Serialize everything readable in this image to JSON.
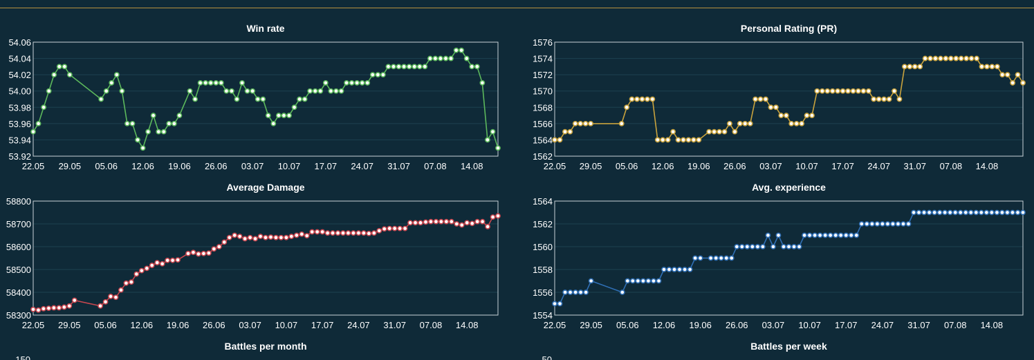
{
  "chart_data": [
    {
      "type": "line",
      "title": "Win rate",
      "color": "#5cb85c",
      "ylim": [
        53.92,
        54.06
      ],
      "yticks": [
        "53.92",
        "53.94",
        "53.96",
        "53.98",
        "54.00",
        "54.02",
        "54.04",
        "54.06"
      ],
      "xticks": [
        "22.05",
        "29.05",
        "05.06",
        "12.06",
        "19.06",
        "26.06",
        "03.07",
        "10.07",
        "17.07",
        "24.07",
        "31.07",
        "07.08",
        "14.08"
      ],
      "grid": true,
      "series": [
        {
          "values": [
            53.95,
            53.96,
            53.98,
            54.0,
            54.02,
            54.03,
            54.03,
            54.02,
            null,
            null,
            null,
            null,
            null,
            53.99,
            54.0,
            54.01,
            54.02,
            54.0,
            53.96,
            53.96,
            53.94,
            53.93,
            53.95,
            53.97,
            53.95,
            53.95,
            53.96,
            53.96,
            53.97,
            null,
            54.0,
            53.99,
            54.01,
            54.01,
            54.01,
            54.01,
            54.01,
            54.0,
            54.0,
            53.99,
            54.01,
            54.0,
            54.0,
            53.99,
            53.99,
            53.97,
            53.96,
            53.97,
            53.97,
            53.97,
            53.98,
            53.99,
            53.99,
            54.0,
            54.0,
            54.0,
            54.01,
            54.0,
            54.0,
            54.0,
            54.01,
            54.01,
            54.01,
            54.01,
            54.01,
            54.02,
            54.02,
            54.02,
            54.03,
            54.03,
            54.03,
            54.03,
            54.03,
            54.03,
            54.03,
            54.03,
            54.04,
            54.04,
            54.04,
            54.04,
            54.04,
            54.05,
            54.05,
            54.04,
            54.03,
            54.03,
            54.01,
            53.94,
            53.95,
            53.93
          ]
        }
      ]
    },
    {
      "type": "line",
      "title": "Personal Rating (PR)",
      "color": "#c9a33d",
      "ylim": [
        1562,
        1576
      ],
      "yticks": [
        "1562",
        "1564",
        "1566",
        "1568",
        "1570",
        "1572",
        "1574",
        "1576"
      ],
      "xticks": [
        "22.05",
        "29.05",
        "05.06",
        "12.06",
        "19.06",
        "26.06",
        "03.07",
        "10.07",
        "17.07",
        "24.07",
        "31.07",
        "07.08",
        "14.08"
      ],
      "grid": true,
      "series": [
        {
          "values": [
            1564,
            1564,
            1565,
            1565,
            1566,
            1566,
            1566,
            1566,
            null,
            null,
            null,
            null,
            null,
            1566,
            1568,
            1569,
            1569,
            1569,
            1569,
            1569,
            1564,
            1564,
            1564,
            1565,
            1564,
            1564,
            1564,
            1564,
            1564,
            null,
            1565,
            1565,
            1565,
            1565,
            1566,
            1565,
            1566,
            1566,
            1566,
            1569,
            1569,
            1569,
            1568,
            1568,
            1567,
            1567,
            1566,
            1566,
            1566,
            1567,
            1567,
            1570,
            1570,
            1570,
            1570,
            1570,
            1570,
            1570,
            1570,
            1570,
            1570,
            1570,
            1569,
            1569,
            1569,
            1569,
            1570,
            1569,
            1573,
            1573,
            1573,
            1573,
            1574,
            1574,
            1574,
            1574,
            1574,
            1574,
            1574,
            1574,
            1574,
            1574,
            1574,
            1573,
            1573,
            1573,
            1573,
            1572,
            1572,
            1571,
            1572,
            1571
          ]
        }
      ]
    },
    {
      "type": "line",
      "title": "Average Damage",
      "color": "#c8474f",
      "ylim": [
        58300,
        58800
      ],
      "yticks": [
        "58300",
        "58400",
        "58500",
        "58600",
        "58700",
        "58800"
      ],
      "xticks": [
        "22.05",
        "29.05",
        "05.06",
        "12.06",
        "19.06",
        "26.06",
        "03.07",
        "10.07",
        "17.07",
        "24.07",
        "31.07",
        "07.08",
        "14.08"
      ],
      "grid": true,
      "series": [
        {
          "values": [
            58325,
            58322,
            58328,
            58330,
            58332,
            58332,
            58335,
            58340,
            58365,
            null,
            null,
            null,
            null,
            58340,
            58358,
            58382,
            58378,
            58410,
            58440,
            58445,
            58480,
            58495,
            58505,
            58518,
            58530,
            58525,
            58540,
            58540,
            58542,
            null,
            58570,
            58575,
            58568,
            58570,
            58572,
            58590,
            58600,
            58620,
            58640,
            58650,
            58645,
            58635,
            58640,
            58635,
            58645,
            58640,
            58642,
            58640,
            58640,
            58640,
            58645,
            58650,
            58655,
            58648,
            58665,
            58665,
            58665,
            58660,
            58660,
            58660,
            58660,
            58660,
            58660,
            58660,
            58660,
            58658,
            58660,
            58670,
            58678,
            58680,
            58680,
            58680,
            58680,
            58705,
            58705,
            58705,
            58708,
            58710,
            58710,
            58710,
            58710,
            58710,
            58700,
            58695,
            58705,
            58702,
            58710,
            58710,
            58688,
            58730,
            58735
          ]
        }
      ]
    },
    {
      "type": "line",
      "title": "Avg. experience",
      "color": "#2f6fb5",
      "ylim": [
        1554,
        1564
      ],
      "yticks": [
        "1554",
        "1556",
        "1558",
        "1560",
        "1562",
        "1564"
      ],
      "xticks": [
        "22.05",
        "29.05",
        "05.06",
        "12.06",
        "19.06",
        "26.06",
        "03.07",
        "10.07",
        "17.07",
        "24.07",
        "31.07",
        "07.08",
        "14.08"
      ],
      "grid": true,
      "series": [
        {
          "values": [
            1555,
            1555,
            1556,
            1556,
            1556,
            1556,
            1556,
            1557,
            null,
            null,
            null,
            null,
            null,
            1556,
            1557,
            1557,
            1557,
            1557,
            1557,
            1557,
            1557,
            1558,
            1558,
            1558,
            1558,
            1558,
            1558,
            1559,
            1559,
            null,
            1559,
            1559,
            1559,
            1559,
            1559,
            1560,
            1560,
            1560,
            1560,
            1560,
            1560,
            1561,
            1560,
            1561,
            1560,
            1560,
            1560,
            1560,
            1561,
            1561,
            1561,
            1561,
            1561,
            1561,
            1561,
            1561,
            1561,
            1561,
            1561,
            1562,
            1562,
            1562,
            1562,
            1562,
            1562,
            1562,
            1562,
            1562,
            1562,
            1563,
            1563,
            1563,
            1563,
            1563,
            1563,
            1563,
            1563,
            1563,
            1563,
            1563,
            1563,
            1563,
            1563,
            1563,
            1563,
            1563,
            1563,
            1563,
            1563,
            1563,
            1563
          ]
        }
      ]
    },
    {
      "type": "line",
      "title": "Battles per month",
      "yticks": [
        "150"
      ]
    },
    {
      "type": "line",
      "title": "Battles per week",
      "yticks": [
        "50"
      ]
    }
  ]
}
